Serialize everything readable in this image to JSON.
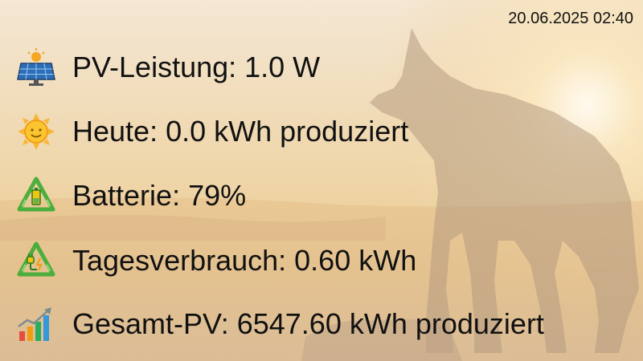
{
  "timestamp": "20.06.2025 02:40",
  "rows": [
    {
      "icon": "solar-panel-icon",
      "text": "PV-Leistung: 1.0 W"
    },
    {
      "icon": "sun-icon",
      "text": "Heute: 0.0 kWh produziert"
    },
    {
      "icon": "battery-recycle-icon",
      "text": "Batterie: 79%"
    },
    {
      "icon": "plug-recycle-icon",
      "text": "Tagesverbrauch: 0.60 kWh"
    },
    {
      "icon": "growth-chart-icon",
      "text": "Gesamt-PV: 6547.60 kWh produziert"
    }
  ]
}
